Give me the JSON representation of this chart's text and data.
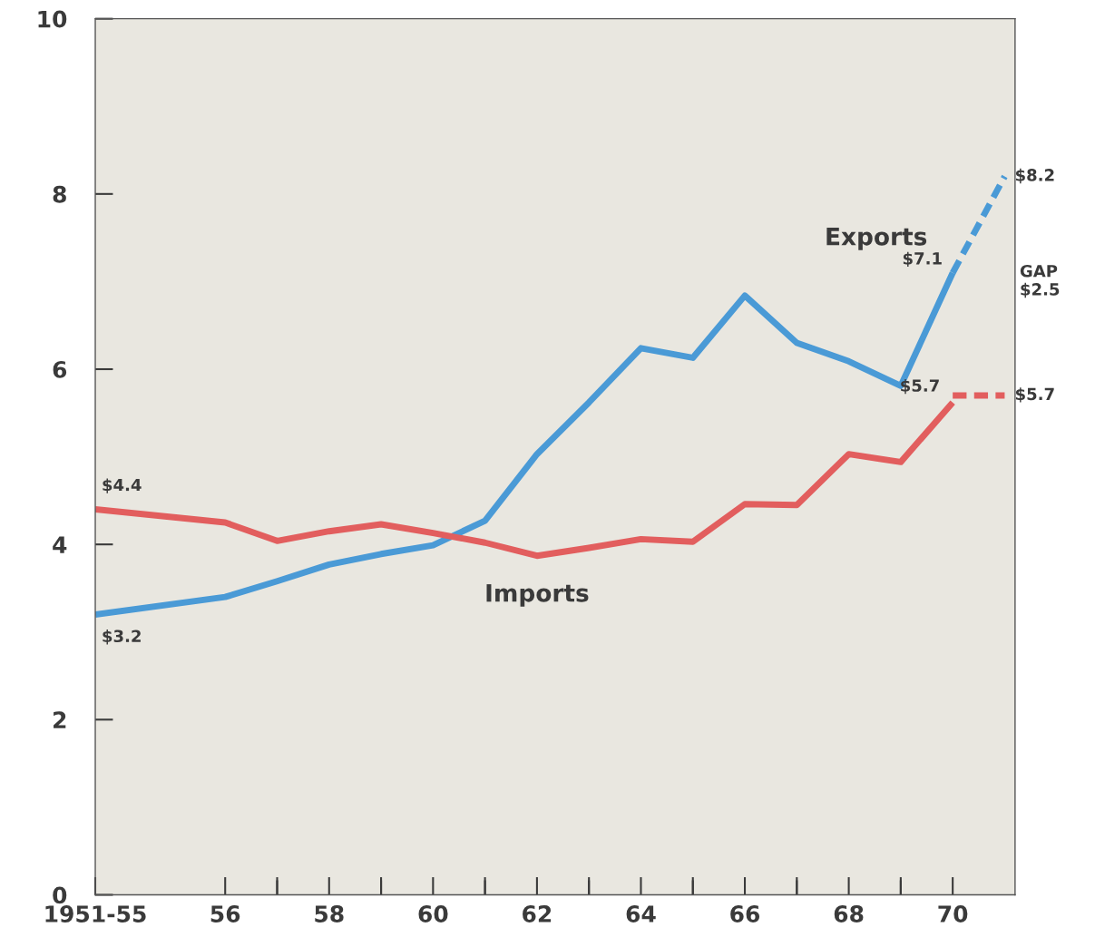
{
  "chart_data": {
    "type": "line",
    "series": [
      {
        "name": "Exports",
        "color": "#4a9ad6",
        "line_style": "solid",
        "x": [
          1953.5,
          1956,
          1957,
          1958,
          1959,
          1960,
          1961,
          1962,
          1963,
          1964,
          1965,
          1966,
          1967,
          1968,
          1969,
          1970
        ],
        "values": [
          3.2,
          3.4,
          3.58,
          3.77,
          3.89,
          3.99,
          4.27,
          5.03,
          5.62,
          6.24,
          6.13,
          6.84,
          6.3,
          6.09,
          5.81,
          7.1
        ]
      },
      {
        "color": "#4a9ad6",
        "line_style": "dashed",
        "x": [
          1970,
          1971
        ],
        "values": [
          7.1,
          8.2
        ]
      },
      {
        "name": "Imports",
        "color": "#e25e5e",
        "line_style": "solid",
        "x": [
          1953.5,
          1956,
          1957,
          1958,
          1959,
          1960,
          1961,
          1962,
          1963,
          1964,
          1965,
          1966,
          1967,
          1968,
          1969,
          1970
        ],
        "values": [
          4.4,
          4.25,
          4.04,
          4.15,
          4.23,
          4.13,
          4.02,
          3.87,
          3.96,
          4.06,
          4.03,
          4.46,
          4.45,
          5.03,
          4.94,
          5.62
        ]
      },
      {
        "color": "#e25e5e",
        "line_style": "dashed",
        "x": [
          1970,
          1971
        ],
        "values": [
          5.7,
          5.7
        ]
      }
    ],
    "xlim": [
      1953.5,
      1971.2
    ],
    "xticks": [
      {
        "value": 1953.5,
        "label": "1951-55"
      },
      {
        "value": 1956,
        "label": "56"
      },
      {
        "value": 1957,
        "label": null
      },
      {
        "value": 1958,
        "label": "58"
      },
      {
        "value": 1959,
        "label": null
      },
      {
        "value": 1960,
        "label": "60"
      },
      {
        "value": 1961,
        "label": null
      },
      {
        "value": 1962,
        "label": "62"
      },
      {
        "value": 1963,
        "label": null
      },
      {
        "value": 1964,
        "label": "64"
      },
      {
        "value": 1965,
        "label": null
      },
      {
        "value": 1966,
        "label": "66"
      },
      {
        "value": 1967,
        "label": null
      },
      {
        "value": 1968,
        "label": "68"
      },
      {
        "value": 1969,
        "label": null
      },
      {
        "value": 1970,
        "label": "70"
      }
    ],
    "ylim": [
      0,
      10
    ],
    "yticks": [
      0,
      2,
      4,
      6,
      8,
      10
    ],
    "grid": false,
    "legend": false,
    "marker": "none",
    "annotations": [
      {
        "text": "$4.4",
        "x": 1953.5,
        "y": 4.4
      },
      {
        "text": "$3.2",
        "x": 1953.5,
        "y": 3.2
      },
      {
        "text": "$7.1",
        "x": 1970,
        "y": 7.1
      },
      {
        "text": "$8.2",
        "x": 1971,
        "y": 8.2
      },
      {
        "text": "$5.7",
        "x": 1970,
        "y": 5.62
      },
      {
        "text": "$5.7",
        "x": 1971,
        "y": 5.7
      },
      "GAP\n$2.5"
    ]
  }
}
